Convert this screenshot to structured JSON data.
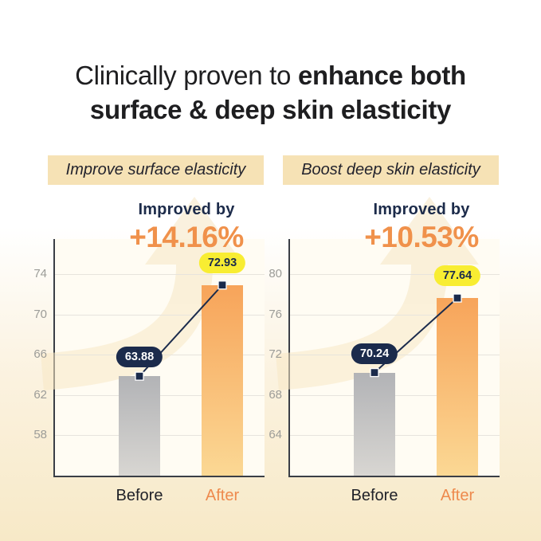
{
  "title": {
    "line1_regular": "Clinically proven to ",
    "line1_bold": "enhance both",
    "line2_bold": "surface & deep skin elasticity"
  },
  "panels": [
    {
      "badge": "Improve surface elasticity",
      "improved_label": "Improved by",
      "improved_value": "+14.16%"
    },
    {
      "badge": "Boost deep skin elasticity",
      "improved_label": "Improved by",
      "improved_value": "+10.53%"
    }
  ],
  "chart_data": [
    {
      "type": "bar",
      "title": "Improve surface elasticity",
      "subtitle": "Improved by +14.16%",
      "categories": [
        "Before",
        "After"
      ],
      "values": [
        63.88,
        72.93
      ],
      "value_labels": [
        "63.88",
        "72.93"
      ],
      "improvement_pct": "+14.16%",
      "ylim": [
        54,
        77.5
      ],
      "yticks": [
        58,
        62,
        66,
        70,
        74
      ],
      "grid": true,
      "legend": "none",
      "series_colors": {
        "before": "gray-gradient",
        "after": "orange-gradient"
      }
    },
    {
      "type": "bar",
      "title": "Boost deep skin elasticity",
      "subtitle": "Improved by +10.53%",
      "categories": [
        "Before",
        "After"
      ],
      "values": [
        70.24,
        77.64
      ],
      "value_labels": [
        "70.24",
        "77.64"
      ],
      "improvement_pct": "+10.53%",
      "ylim": [
        60,
        83.5
      ],
      "yticks": [
        64,
        68,
        72,
        76,
        80
      ],
      "grid": true,
      "legend": "none",
      "series_colors": {
        "before": "gray-gradient",
        "after": "orange-gradient"
      }
    }
  ],
  "colors": {
    "accent_orange": "#F0914B",
    "after_label_orange": "#EE8A4D",
    "navy": "#1B2B4C",
    "pill_yellow": "#F8ED32",
    "badge_background": "#F6E2B5",
    "bar_gray_top": "#B2B3B6",
    "bar_gray_bottom": "#D8D6D2",
    "bar_orange_top": "#F7A45A",
    "bar_orange_bottom": "#FBD894",
    "plot_background": "#FFFCF3",
    "page_background_bottom": "#F7E9C7",
    "gridline": "#E7E4DD",
    "axis": "#3A3E46",
    "tick_text": "#9C9C98",
    "title_text": "#1E1E20"
  }
}
